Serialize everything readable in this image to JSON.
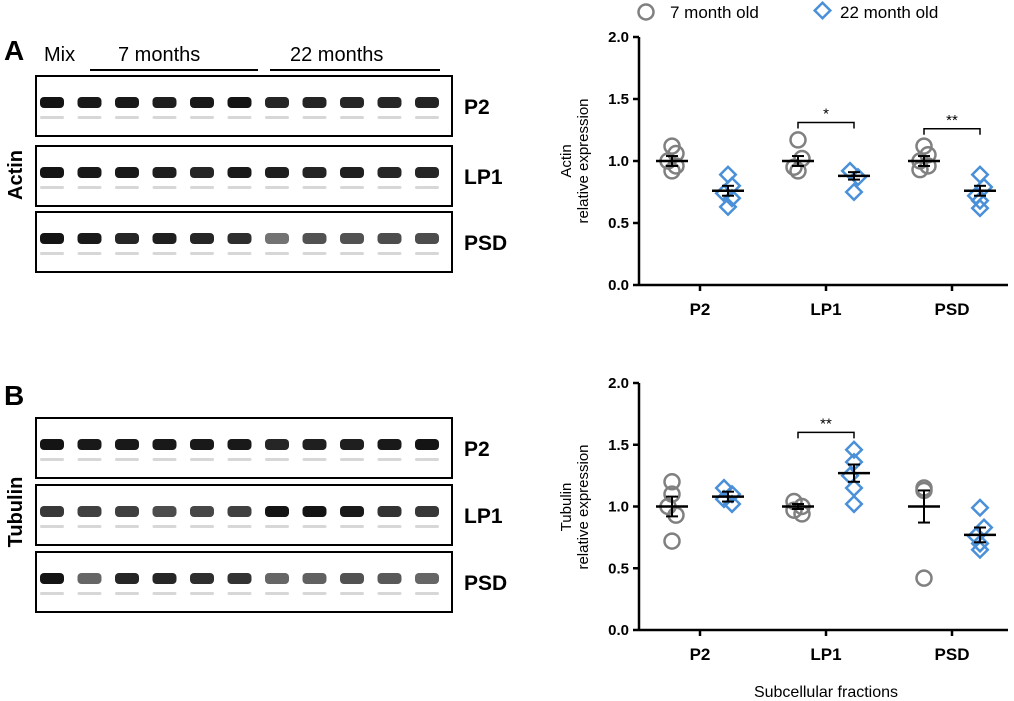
{
  "panels": [
    {
      "letter": "A",
      "blot": {
        "protein": "Actin",
        "lane_headers": [
          "Mix",
          "7 months",
          "22 months"
        ],
        "rows": [
          {
            "fraction": "P2",
            "intensity": [
              0.92,
              0.9,
              0.9,
              0.88,
              0.9,
              0.92,
              0.85,
              0.86,
              0.85,
              0.85,
              0.86
            ]
          },
          {
            "fraction": "LP1",
            "intensity": [
              0.92,
              0.9,
              0.9,
              0.88,
              0.85,
              0.9,
              0.88,
              0.86,
              0.88,
              0.85,
              0.85
            ]
          },
          {
            "fraction": "PSD",
            "intensity": [
              0.92,
              0.9,
              0.85,
              0.88,
              0.85,
              0.82,
              0.55,
              0.68,
              0.68,
              0.7,
              0.7
            ]
          }
        ]
      },
      "chart_data": {
        "type": "scatter",
        "ylabel": [
          "Actin",
          "relative expression"
        ],
        "xlabel": "",
        "ylim": [
          0,
          2.0
        ],
        "yticks": [
          "0.0",
          "0.5",
          "1.0",
          "1.5",
          "2.0"
        ],
        "categories": [
          "P2",
          "LP1",
          "PSD"
        ],
        "series": [
          {
            "name": "7 month old",
            "marker": "circle",
            "color": "#808080",
            "mean": [
              1.0,
              1.0,
              1.0
            ],
            "sem": [
              0.04,
              0.04,
              0.04
            ],
            "points": [
              [
                1.12,
                1.06,
                1.0,
                0.96,
                0.92
              ],
              [
                1.17,
                1.02,
                0.95,
                0.92
              ],
              [
                1.12,
                1.05,
                1.0,
                0.96,
                0.93
              ]
            ]
          },
          {
            "name": "22 month old",
            "marker": "diamond",
            "color": "#4A90D9",
            "mean": [
              0.76,
              0.88,
              0.76
            ],
            "sem": [
              0.04,
              0.03,
              0.04
            ],
            "points": [
              [
                0.89,
                0.8,
                0.74,
                0.7,
                0.63
              ],
              [
                0.92,
                0.87,
                0.75
              ],
              [
                0.89,
                0.79,
                0.72,
                0.68,
                0.62
              ]
            ]
          }
        ],
        "significance": [
          {
            "category": "LP1",
            "label": "*"
          },
          {
            "category": "PSD",
            "label": "**"
          }
        ]
      }
    },
    {
      "letter": "B",
      "blot": {
        "protein": "Tubulin",
        "rows": [
          {
            "fraction": "P2",
            "intensity": [
              0.92,
              0.9,
              0.9,
              0.9,
              0.9,
              0.9,
              0.85,
              0.88,
              0.88,
              0.9,
              0.92
            ]
          },
          {
            "fraction": "LP1",
            "intensity": [
              0.78,
              0.75,
              0.75,
              0.7,
              0.72,
              0.75,
              0.92,
              0.92,
              0.9,
              0.8,
              0.78
            ]
          },
          {
            "fraction": "PSD",
            "intensity": [
              0.92,
              0.6,
              0.85,
              0.85,
              0.82,
              0.8,
              0.6,
              0.62,
              0.68,
              0.65,
              0.6
            ]
          }
        ]
      },
      "chart_data": {
        "type": "scatter",
        "ylabel": [
          "Tubulin",
          "relative expression"
        ],
        "xlabel": "Subcellular fractions",
        "ylim": [
          0,
          2.0
        ],
        "yticks": [
          "0.0",
          "0.5",
          "1.0",
          "1.5",
          "2.0"
        ],
        "categories": [
          "P2",
          "LP1",
          "PSD"
        ],
        "series": [
          {
            "name": "7 month old",
            "marker": "circle",
            "color": "#808080",
            "mean": [
              1.0,
              1.0,
              1.0
            ],
            "sem": [
              0.08,
              0.02,
              0.13
            ],
            "points": [
              [
                1.2,
                1.1,
                1.0,
                0.93,
                0.72
              ],
              [
                1.04,
                1.0,
                0.97,
                0.94
              ],
              [
                1.15,
                1.13,
                0.42
              ]
            ]
          },
          {
            "name": "22 month old",
            "marker": "diamond",
            "color": "#4A90D9",
            "mean": [
              1.08,
              1.27,
              0.77
            ],
            "sem": [
              0.04,
              0.07,
              0.06
            ],
            "points": [
              [
                1.15,
                1.1,
                1.06,
                1.02
              ],
              [
                1.46,
                1.36,
                1.25,
                1.15,
                1.02
              ],
              [
                0.99,
                0.83,
                0.76,
                0.7,
                0.65
              ]
            ]
          }
        ],
        "significance": [
          {
            "category": "LP1",
            "label": "**"
          }
        ]
      }
    }
  ],
  "legend": {
    "labels": [
      "7 month old",
      "22 month old"
    ],
    "colors": [
      "#808080",
      "#4A90D9"
    ]
  }
}
